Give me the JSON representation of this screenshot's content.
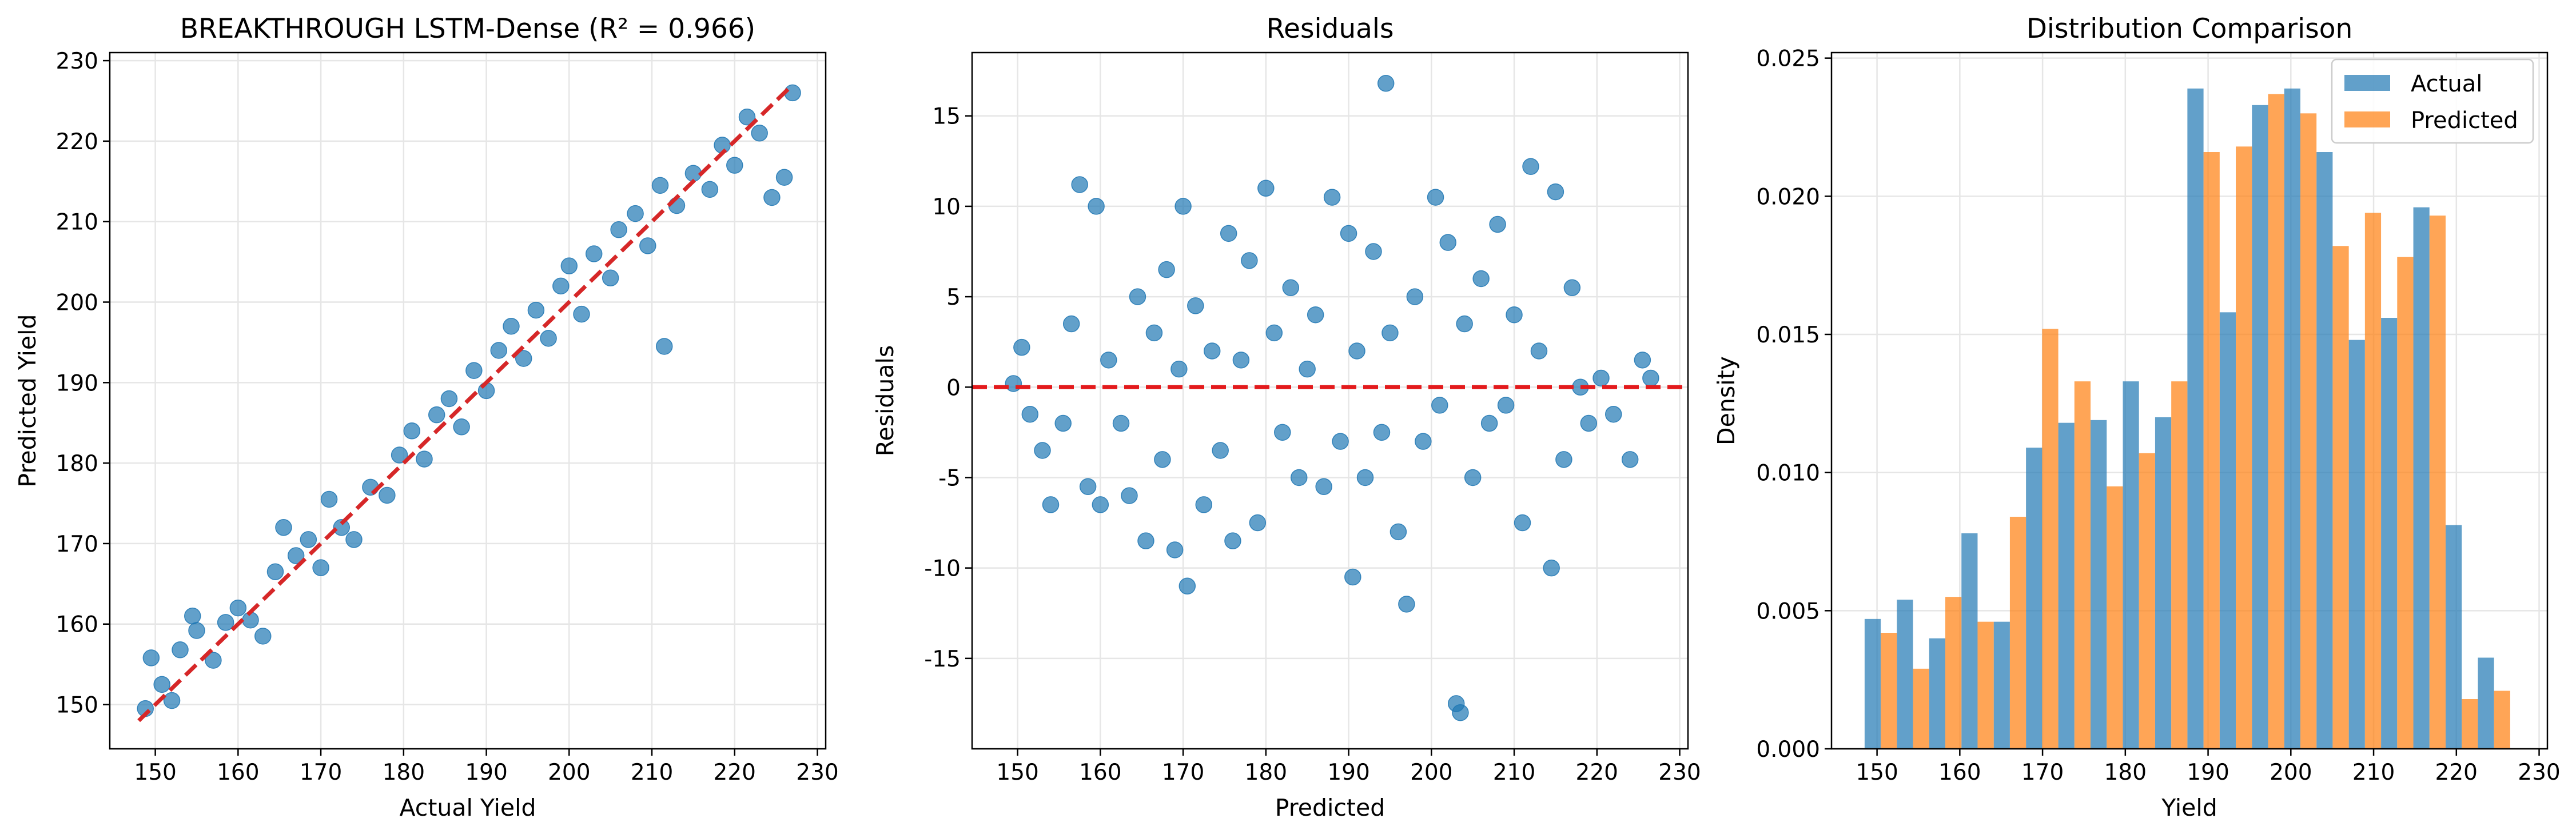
{
  "colors": {
    "blue": "#1f77b4",
    "orange": "#ff7f0e",
    "red_line": "#d62728",
    "zero_line": "#e31a1c",
    "grid": "#e6e6e6"
  },
  "chart_data": [
    {
      "type": "scatter",
      "title": "BREAKTHROUGH LSTM-Dense (R² = 0.966)",
      "xlabel": "Actual Yield",
      "ylabel": "Predicted Yield",
      "xlim": [
        144.5,
        231
      ],
      "ylim": [
        144.5,
        231
      ],
      "xticks": [
        150,
        160,
        170,
        180,
        190,
        200,
        210,
        220,
        230
      ],
      "yticks": [
        150,
        160,
        170,
        180,
        190,
        200,
        210,
        220,
        230
      ],
      "grid": true,
      "reference_line": {
        "style": "dashed",
        "color": "red",
        "from": [
          148,
          148
        ],
        "to": [
          227,
          227
        ]
      },
      "sampled_points": [
        [
          148.8,
          149.5
        ],
        [
          149.5,
          155.8
        ],
        [
          150.8,
          152.5
        ],
        [
          152.0,
          150.5
        ],
        [
          153.0,
          156.8
        ],
        [
          154.5,
          161.0
        ],
        [
          155.0,
          159.2
        ],
        [
          157.0,
          155.5
        ],
        [
          158.5,
          160.2
        ],
        [
          160.0,
          162.0
        ],
        [
          161.5,
          160.5
        ],
        [
          163.0,
          158.5
        ],
        [
          164.5,
          166.5
        ],
        [
          165.5,
          172.0
        ],
        [
          167.0,
          168.5
        ],
        [
          168.5,
          170.5
        ],
        [
          170.0,
          167.0
        ],
        [
          171.0,
          175.5
        ],
        [
          172.5,
          172.0
        ],
        [
          174.0,
          170.5
        ],
        [
          176.0,
          177.0
        ],
        [
          178.0,
          176.0
        ],
        [
          179.5,
          181.0
        ],
        [
          181.0,
          184.0
        ],
        [
          182.5,
          180.5
        ],
        [
          184.0,
          186.0
        ],
        [
          185.5,
          188.0
        ],
        [
          187.0,
          184.5
        ],
        [
          188.5,
          191.5
        ],
        [
          190.0,
          189.0
        ],
        [
          191.5,
          194.0
        ],
        [
          193.0,
          197.0
        ],
        [
          194.5,
          193.0
        ],
        [
          196.0,
          199.0
        ],
        [
          197.5,
          195.5
        ],
        [
          199.0,
          202.0
        ],
        [
          200.0,
          204.5
        ],
        [
          201.5,
          198.5
        ],
        [
          203.0,
          206.0
        ],
        [
          205.0,
          203.0
        ],
        [
          206.0,
          209.0
        ],
        [
          208.0,
          211.0
        ],
        [
          209.5,
          207.0
        ],
        [
          211.0,
          214.5
        ],
        [
          211.5,
          194.5
        ],
        [
          213.0,
          212.0
        ],
        [
          215.0,
          216.0
        ],
        [
          217.0,
          214.0
        ],
        [
          218.5,
          219.5
        ],
        [
          220.0,
          217.0
        ],
        [
          221.5,
          223.0
        ],
        [
          223.0,
          221.0
        ],
        [
          224.5,
          213.0
        ],
        [
          226.0,
          215.5
        ],
        [
          227.0,
          226.0
        ]
      ]
    },
    {
      "type": "scatter",
      "title": "Residuals",
      "xlabel": "Predicted",
      "ylabel": "Residuals",
      "xlim": [
        144.5,
        231
      ],
      "ylim": [
        -20,
        18.5
      ],
      "xticks": [
        150,
        160,
        170,
        180,
        190,
        200,
        210,
        220,
        230
      ],
      "yticks": [
        -15,
        -10,
        -5,
        0,
        5,
        10,
        15
      ],
      "grid": true,
      "reference_line": {
        "style": "dashed",
        "color": "red",
        "y": 0
      },
      "sampled_points": [
        [
          149.5,
          0.2
        ],
        [
          150.5,
          2.2
        ],
        [
          151.5,
          -1.5
        ],
        [
          153.0,
          -3.5
        ],
        [
          154.0,
          -6.5
        ],
        [
          155.5,
          -2.0
        ],
        [
          156.5,
          3.5
        ],
        [
          157.5,
          11.2
        ],
        [
          158.5,
          -5.5
        ],
        [
          159.5,
          10.0
        ],
        [
          160.0,
          -6.5
        ],
        [
          161.0,
          1.5
        ],
        [
          162.5,
          -2.0
        ],
        [
          163.5,
          -6.0
        ],
        [
          164.5,
          5.0
        ],
        [
          165.5,
          -8.5
        ],
        [
          166.5,
          3.0
        ],
        [
          167.5,
          -4.0
        ],
        [
          168.0,
          6.5
        ],
        [
          169.0,
          -9.0
        ],
        [
          169.5,
          1.0
        ],
        [
          170.0,
          10.0
        ],
        [
          170.5,
          -11.0
        ],
        [
          171.5,
          4.5
        ],
        [
          172.5,
          -6.5
        ],
        [
          173.5,
          2.0
        ],
        [
          174.5,
          -3.5
        ],
        [
          175.5,
          8.5
        ],
        [
          176.0,
          -8.5
        ],
        [
          177.0,
          1.5
        ],
        [
          178.0,
          7.0
        ],
        [
          179.0,
          -7.5
        ],
        [
          180.0,
          11.0
        ],
        [
          181.0,
          3.0
        ],
        [
          182.0,
          -2.5
        ],
        [
          183.0,
          5.5
        ],
        [
          184.0,
          -5.0
        ],
        [
          185.0,
          1.0
        ],
        [
          186.0,
          4.0
        ],
        [
          187.0,
          -5.5
        ],
        [
          188.0,
          10.5
        ],
        [
          189.0,
          -3.0
        ],
        [
          190.0,
          8.5
        ],
        [
          190.5,
          -10.5
        ],
        [
          191.0,
          2.0
        ],
        [
          192.0,
          -5.0
        ],
        [
          193.0,
          7.5
        ],
        [
          194.0,
          -2.5
        ],
        [
          194.5,
          16.8
        ],
        [
          195.0,
          3.0
        ],
        [
          196.0,
          -8.0
        ],
        [
          197.0,
          -12.0
        ],
        [
          198.0,
          5.0
        ],
        [
          199.0,
          -3.0
        ],
        [
          200.5,
          10.5
        ],
        [
          201.0,
          -1.0
        ],
        [
          202.0,
          8.0
        ],
        [
          203.0,
          -17.5
        ],
        [
          203.5,
          -18.0
        ],
        [
          204.0,
          3.5
        ],
        [
          205.0,
          -5.0
        ],
        [
          206.0,
          6.0
        ],
        [
          207.0,
          -2.0
        ],
        [
          208.0,
          9.0
        ],
        [
          209.0,
          -1.0
        ],
        [
          210.0,
          4.0
        ],
        [
          211.0,
          -7.5
        ],
        [
          212.0,
          12.2
        ],
        [
          213.0,
          2.0
        ],
        [
          214.5,
          -10.0
        ],
        [
          215.0,
          10.8
        ],
        [
          216.0,
          -4.0
        ],
        [
          217.0,
          5.5
        ],
        [
          218.0,
          0.0
        ],
        [
          219.0,
          -2.0
        ],
        [
          220.5,
          0.5
        ],
        [
          222.0,
          -1.5
        ],
        [
          224.0,
          -4.0
        ],
        [
          225.5,
          1.5
        ],
        [
          226.5,
          0.5
        ]
      ]
    },
    {
      "type": "bar",
      "title": "Distribution Comparison",
      "xlabel": "Yield",
      "ylabel": "Density",
      "xlim": [
        144.5,
        231
      ],
      "ylim": [
        0,
        0.0252
      ],
      "xticks": [
        150,
        160,
        170,
        180,
        190,
        200,
        210,
        220,
        230
      ],
      "yticks": [
        0.0,
        0.005,
        0.01,
        0.015,
        0.02,
        0.025
      ],
      "ytick_labels": [
        "0.000",
        "0.005",
        "0.010",
        "0.015",
        "0.020",
        "0.025"
      ],
      "grid": true,
      "legend": "top-right",
      "bin_edges": [
        148.5,
        152.4,
        156.3,
        160.2,
        164.1,
        168.0,
        171.9,
        175.8,
        179.7,
        183.6,
        187.5,
        191.4,
        195.3,
        199.2,
        203.1,
        207.0,
        210.9,
        214.8,
        218.7,
        222.6,
        226.5
      ],
      "series": [
        {
          "name": "Actual",
          "values": [
            0.0047,
            0.0054,
            0.004,
            0.0078,
            0.0046,
            0.0109,
            0.0118,
            0.0119,
            0.0133,
            0.012,
            0.0239,
            0.0158,
            0.0233,
            0.0239,
            0.0216,
            0.0148,
            0.0156,
            0.0196,
            0.0081,
            0.0033
          ]
        },
        {
          "name": "Predicted",
          "values": [
            0.0042,
            0.0029,
            0.0055,
            0.0046,
            0.0084,
            0.0152,
            0.0133,
            0.0095,
            0.0107,
            0.0133,
            0.0216,
            0.0218,
            0.0237,
            0.023,
            0.0182,
            0.0194,
            0.0178,
            0.0193,
            0.0018,
            0.0021
          ]
        }
      ]
    }
  ]
}
